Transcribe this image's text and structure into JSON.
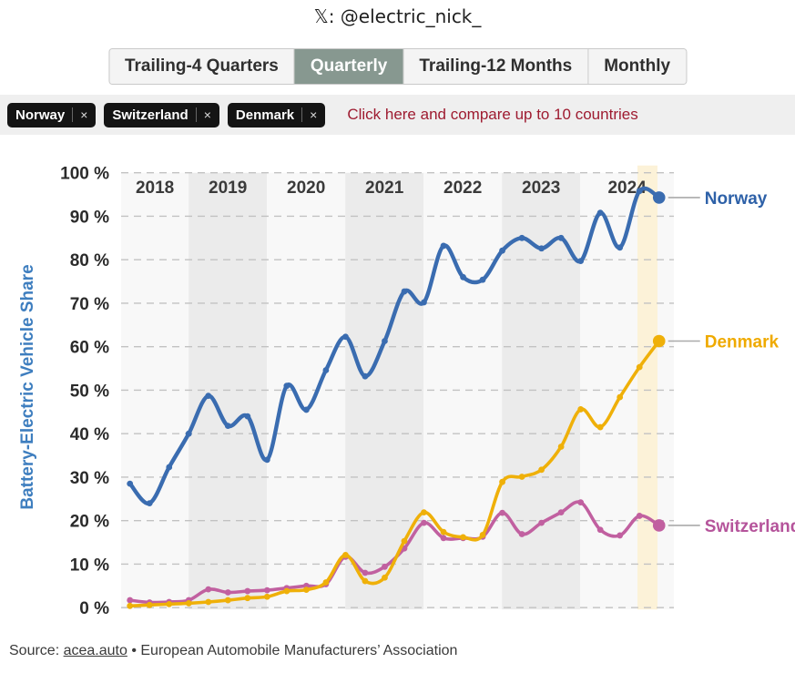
{
  "header": {
    "title": "𝕏: @electric_nick_"
  },
  "tabs": {
    "items": [
      {
        "label": "Trailing-4 Quarters",
        "selected": false
      },
      {
        "label": "Quarterly",
        "selected": true
      },
      {
        "label": "Trailing-12 Months",
        "selected": false
      },
      {
        "label": "Monthly",
        "selected": false
      }
    ]
  },
  "filter_bar": {
    "chips": [
      {
        "label": "Norway"
      },
      {
        "label": "Switzerland"
      },
      {
        "label": "Denmark"
      }
    ],
    "remove_icon": "×",
    "hint": "Click here and compare up to 10 countries"
  },
  "chart_data": {
    "type": "line",
    "ylabel": "Battery-Electric Vehicle Share",
    "ylim": [
      0,
      100
    ],
    "ytick_step": 10,
    "ytick_suffix": " %",
    "grid": "dashed-horizontal",
    "legend_position": "right-of-line-ends",
    "highlight_last_quarter": true,
    "highlight_color": "#fcf2d8",
    "band_colors": {
      "light": "#f8f8f8",
      "shaded": "#ebebeb"
    },
    "x": [
      "2018 Q1",
      "2018 Q2",
      "2018 Q3",
      "2018 Q4",
      "2019 Q1",
      "2019 Q2",
      "2019 Q3",
      "2019 Q4",
      "2020 Q1",
      "2020 Q2",
      "2020 Q3",
      "2020 Q4",
      "2021 Q1",
      "2021 Q2",
      "2021 Q3",
      "2021 Q4",
      "2022 Q1",
      "2022 Q2",
      "2022 Q3",
      "2022 Q4",
      "2023 Q1",
      "2023 Q2",
      "2023 Q3",
      "2023 Q4",
      "2024 Q1",
      "2024 Q2",
      "2024 Q3",
      "2024 Q4"
    ],
    "year_bands": [
      {
        "year": "2018",
        "shaded": false
      },
      {
        "year": "2019",
        "shaded": true
      },
      {
        "year": "2020",
        "shaded": false
      },
      {
        "year": "2021",
        "shaded": true
      },
      {
        "year": "2022",
        "shaded": false
      },
      {
        "year": "2023",
        "shaded": true
      },
      {
        "year": "2024",
        "shaded": false
      }
    ],
    "series": [
      {
        "name": "Norway",
        "color": "#3a6cb0",
        "label_color": "#2e61a8",
        "values": [
          28.5,
          24.0,
          32.3,
          40.0,
          48.7,
          41.8,
          44.0,
          34.0,
          51.0,
          45.5,
          54.6,
          62.3,
          53.2,
          61.3,
          72.7,
          70.2,
          83.2,
          76.0,
          75.4,
          82.1,
          85.0,
          82.6,
          85.0,
          79.7,
          90.8,
          82.8,
          95.8,
          94.3
        ]
      },
      {
        "name": "Denmark",
        "color": "#efb009",
        "label_color": "#efaa00",
        "values": [
          0.4,
          0.6,
          0.8,
          1.0,
          1.3,
          1.7,
          2.2,
          2.5,
          3.8,
          4.1,
          5.8,
          12.1,
          6.1,
          6.9,
          15.3,
          21.9,
          17.4,
          16.2,
          16.7,
          28.9,
          30.1,
          31.7,
          37.0,
          45.6,
          41.5,
          48.4,
          55.3,
          61.3
        ]
      },
      {
        "name": "Switzerland",
        "color": "#c160a0",
        "label_color": "#b5549b",
        "values": [
          1.7,
          1.2,
          1.3,
          1.7,
          4.2,
          3.5,
          3.8,
          4.0,
          4.5,
          5.0,
          5.4,
          11.7,
          8.0,
          9.4,
          13.6,
          19.5,
          16.0,
          16.0,
          16.3,
          21.8,
          16.9,
          19.5,
          21.9,
          24.2,
          17.9,
          16.6,
          21.1,
          18.9
        ]
      }
    ]
  },
  "source": {
    "prefix": "Source: ",
    "link": "acea.auto",
    "suffix": " • European Automobile Manufacturers’ Association"
  }
}
